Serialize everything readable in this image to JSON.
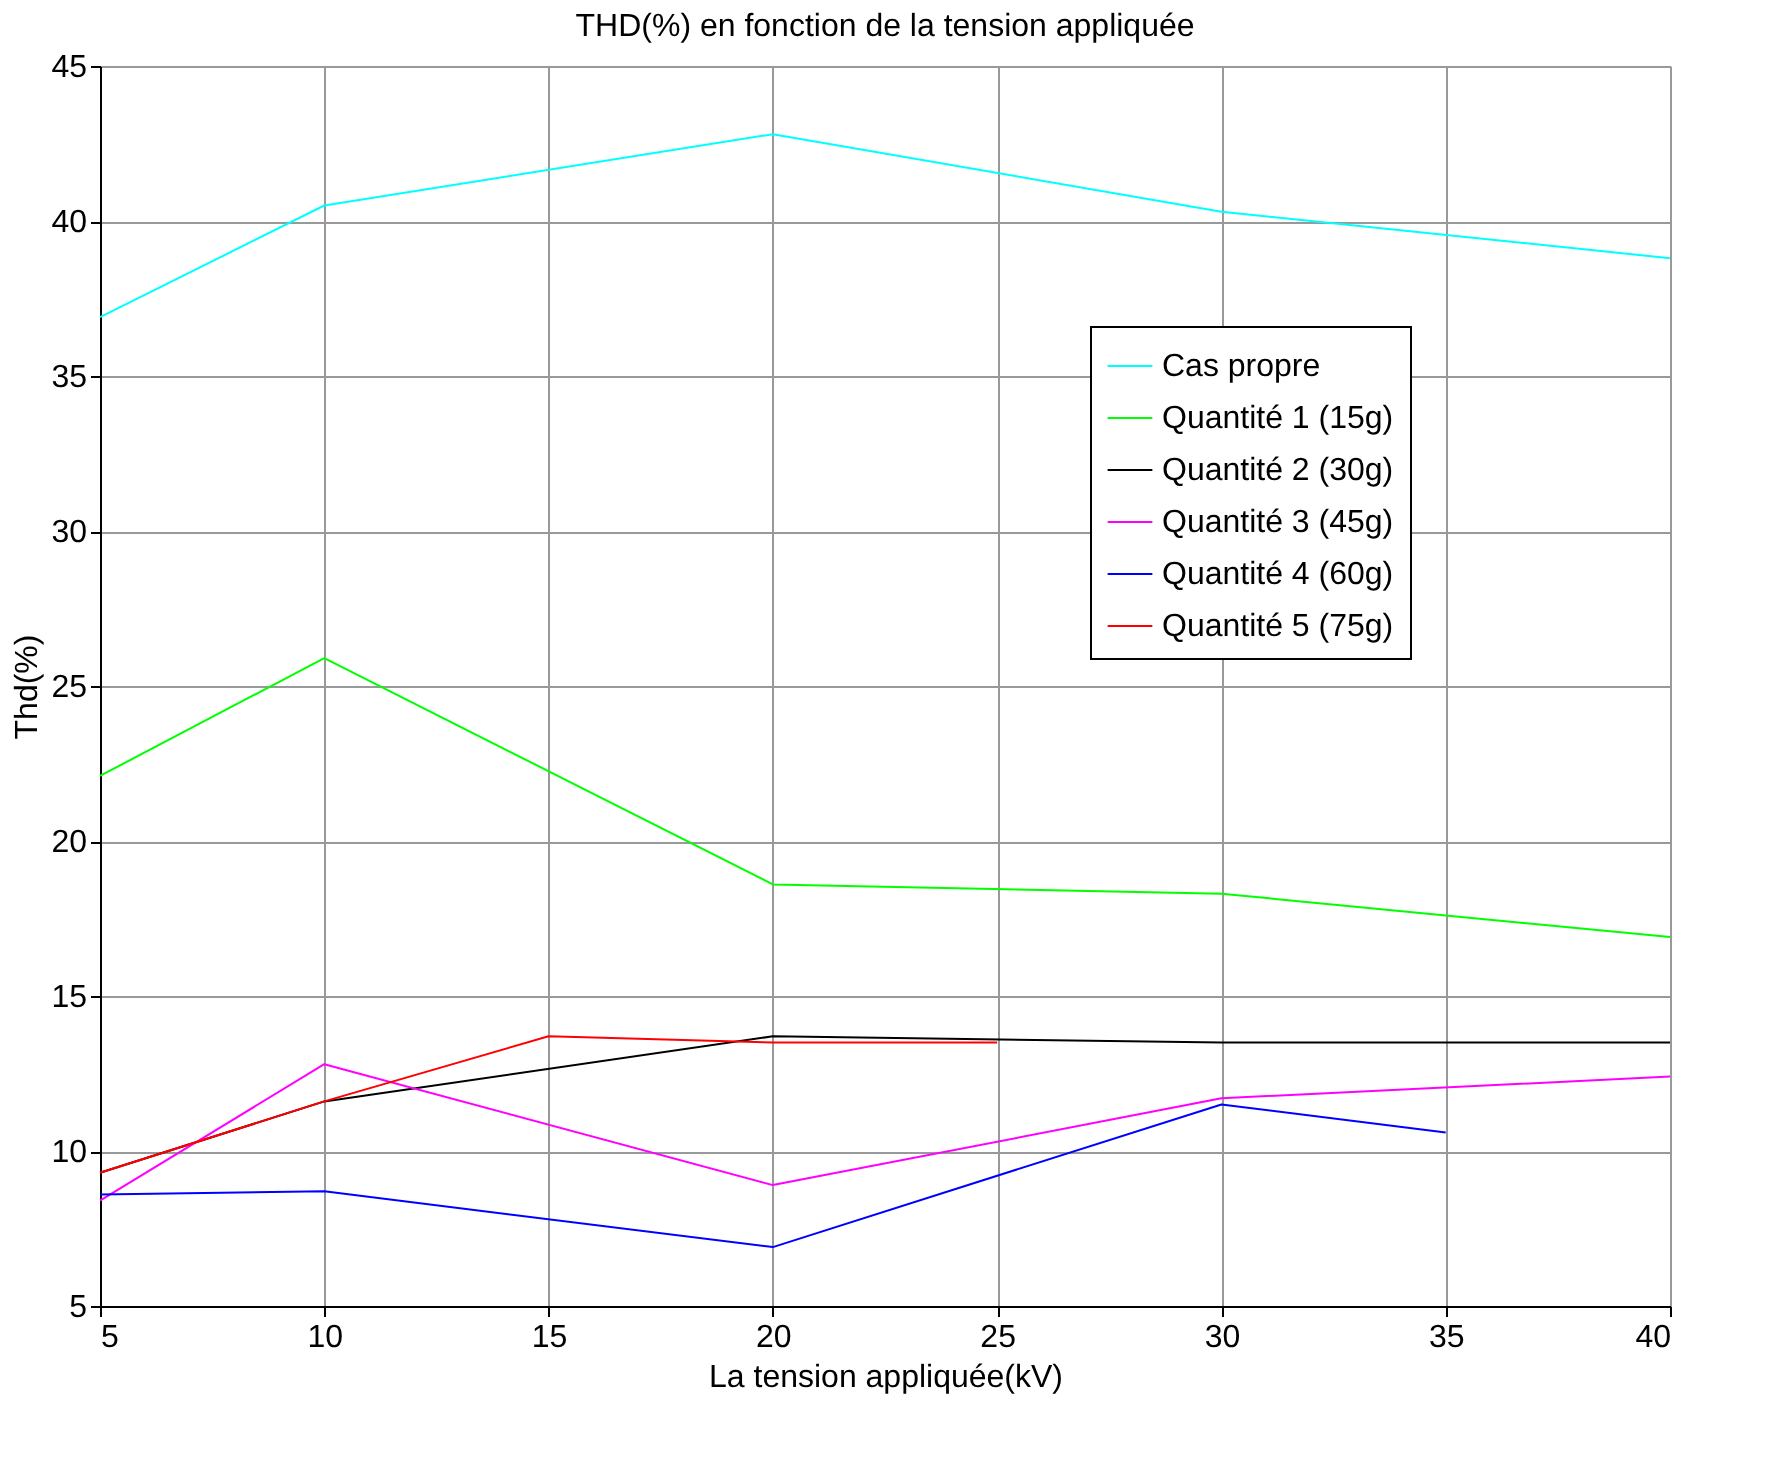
{
  "chart_data": {
    "type": "line",
    "title": "THD(%) en fonction de la tension appliquée",
    "xlabel": "La tension appliquée(kV)",
    "ylabel": "Thd(%)",
    "xlim": [
      5,
      40
    ],
    "xticks": [
      5,
      10,
      15,
      20,
      25,
      30,
      35,
      40
    ],
    "ylim": [
      5,
      45
    ],
    "yticks": [
      5,
      10,
      15,
      20,
      25,
      30,
      35,
      40,
      45
    ],
    "grid": true,
    "legend": "top right",
    "marker": "none",
    "line_style": "solid",
    "series": [
      {
        "name": "Cas propre",
        "color": "#00ffff",
        "x": [
          5,
          10,
          20,
          30,
          40
        ],
        "values": [
          36.9,
          40.5,
          42.8,
          40.3,
          38.8
        ]
      },
      {
        "name": "Quantité 1 (15g)",
        "color": "#00ff00",
        "x": [
          5,
          10,
          20,
          30,
          40
        ],
        "values": [
          22.1,
          25.9,
          18.6,
          18.3,
          16.9
        ]
      },
      {
        "name": "Quantité 2 (30g)",
        "color": "#000000",
        "x": [
          5,
          10,
          20,
          30,
          40
        ],
        "values": [
          9.3,
          11.6,
          13.7,
          13.5,
          13.5
        ]
      },
      {
        "name": "Quantité 3 (45g)",
        "color": "#ff00ff",
        "x": [
          5,
          10,
          20,
          30,
          40
        ],
        "values": [
          8.4,
          12.8,
          8.9,
          11.7,
          12.4
        ]
      },
      {
        "name": "Quantité 4 (60g)",
        "color": "#0000ff",
        "x": [
          5,
          10,
          20,
          30,
          35
        ],
        "values": [
          8.6,
          8.7,
          6.9,
          11.5,
          10.6
        ]
      },
      {
        "name": "Quantité 5 (75g)",
        "color": "#ff0000",
        "x": [
          5,
          10,
          15,
          20,
          25
        ],
        "values": [
          9.3,
          11.6,
          13.7,
          13.5,
          13.5
        ]
      }
    ]
  }
}
